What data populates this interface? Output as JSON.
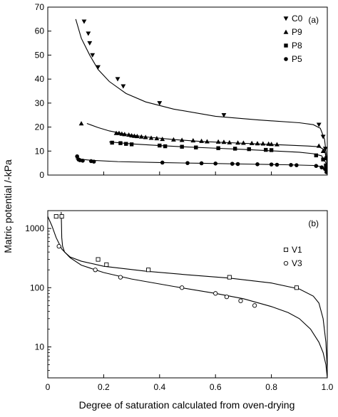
{
  "figure": {
    "ylabel": "Matric potential /-kPa",
    "xlabel": "Degree of saturation calculated from oven-drying"
  },
  "chart_data": [
    {
      "panel_label": "(a)",
      "type": "scatter",
      "xlim": [
        0,
        1.0
      ],
      "ylim": [
        0,
        70
      ],
      "yscale": "linear",
      "yticks": [
        0,
        10,
        20,
        30,
        40,
        50,
        60,
        70
      ],
      "xticks": [],
      "legend_position": "top-right",
      "series": [
        {
          "name": "C0",
          "marker": "triangle-down",
          "x": [
            0.13,
            0.145,
            0.15,
            0.16,
            0.18,
            0.25,
            0.27,
            0.4,
            0.63,
            0.97,
            0.985,
            0.993,
            0.998
          ],
          "y": [
            64,
            59,
            55,
            50,
            45,
            40,
            37,
            30,
            25,
            21,
            16,
            11,
            7
          ],
          "curve": {
            "x": [
              0.1,
              0.12,
              0.15,
              0.18,
              0.22,
              0.28,
              0.35,
              0.45,
              0.6,
              0.75,
              0.9,
              0.95,
              0.975,
              0.99,
              0.997,
              1.0
            ],
            "y": [
              65,
              57,
              50,
              44,
              39,
              34,
              30.5,
              27.5,
              24.5,
              23,
              21.8,
              21,
              19.5,
              15,
              8,
              2
            ]
          }
        },
        {
          "name": "P9",
          "marker": "triangle-up",
          "x": [
            0.12,
            0.245,
            0.255,
            0.265,
            0.275,
            0.29,
            0.3,
            0.31,
            0.32,
            0.335,
            0.35,
            0.37,
            0.39,
            0.41,
            0.45,
            0.48,
            0.52,
            0.55,
            0.57,
            0.61,
            0.63,
            0.65,
            0.68,
            0.7,
            0.73,
            0.75,
            0.77,
            0.79,
            0.8,
            0.82,
            0.97,
            0.985,
            0.993
          ],
          "y": [
            21.5,
            17.5,
            17.5,
            17.2,
            17.0,
            16.8,
            16.5,
            16.3,
            16.2,
            16.0,
            15.8,
            15.5,
            15.3,
            15.0,
            14.8,
            14.6,
            14.4,
            14.2,
            14.0,
            13.9,
            13.8,
            13.6,
            13.5,
            13.4,
            13.3,
            13.2,
            13.1,
            13.0,
            12.9,
            12.8,
            12.2,
            10,
            7
          ],
          "curve": {
            "x": [
              0.14,
              0.18,
              0.22,
              0.28,
              0.35,
              0.45,
              0.55,
              0.65,
              0.75,
              0.85,
              0.93,
              0.97,
              0.99,
              0.997,
              1.0
            ],
            "y": [
              21.5,
              19.8,
              18.4,
              17.0,
              15.9,
              14.8,
              14.0,
              13.5,
              13.0,
              12.5,
              12.1,
              11.8,
              10.5,
              6.5,
              2
            ]
          }
        },
        {
          "name": "P8",
          "marker": "square",
          "x": [
            0.23,
            0.26,
            0.28,
            0.3,
            0.4,
            0.42,
            0.48,
            0.53,
            0.61,
            0.67,
            0.72,
            0.78,
            0.8,
            0.96,
            0.985,
            0.995
          ],
          "y": [
            13.5,
            13.3,
            13.0,
            12.8,
            12.3,
            12.0,
            11.8,
            11.5,
            11.2,
            11.0,
            10.8,
            10.5,
            10.4,
            8.2,
            6.5,
            4.0
          ],
          "curve": {
            "x": [
              0.22,
              0.3,
              0.4,
              0.5,
              0.6,
              0.7,
              0.8,
              0.9,
              0.95,
              0.98,
              0.995,
              1.0
            ],
            "y": [
              13.8,
              13.0,
              12.3,
              11.7,
              11.2,
              10.7,
              10.1,
              9.5,
              8.9,
              8.0,
              5.0,
              1.5
            ]
          }
        },
        {
          "name": "P5",
          "marker": "circle",
          "x": [
            0.105,
            0.11,
            0.115,
            0.125,
            0.155,
            0.165,
            0.41,
            0.5,
            0.55,
            0.6,
            0.66,
            0.68,
            0.75,
            0.8,
            0.82,
            0.87,
            0.89,
            0.96,
            0.98,
            0.992,
            0.997
          ],
          "y": [
            7.8,
            6.5,
            6.2,
            6.0,
            5.8,
            5.6,
            5.2,
            5.0,
            4.9,
            4.8,
            4.7,
            4.6,
            4.5,
            4.4,
            4.3,
            4.2,
            4.1,
            3.8,
            3.2,
            2.5,
            1.2
          ],
          "curve": {
            "x": [
              0.1,
              0.15,
              0.25,
              0.4,
              0.55,
              0.7,
              0.85,
              0.95,
              0.98,
              0.995,
              1.0
            ],
            "y": [
              6.8,
              6.2,
              5.6,
              5.2,
              4.9,
              4.6,
              4.3,
              4.0,
              3.5,
              2.2,
              0.5
            ]
          }
        }
      ]
    },
    {
      "panel_label": "(b)",
      "type": "scatter",
      "xlim": [
        0,
        1.0
      ],
      "ylim": [
        3,
        2000
      ],
      "yscale": "log",
      "yticks": [
        10,
        100,
        1000
      ],
      "ytick_labels": [
        "10",
        "100",
        "1000"
      ],
      "xticks": [
        0,
        0.2,
        0.4,
        0.6,
        0.8,
        1.0
      ],
      "xtick_labels": [
        "0",
        "0.2",
        "0.4",
        "0.6",
        "0.8",
        "1.0"
      ],
      "legend_position": "top-right",
      "series": [
        {
          "name": "V1",
          "marker": "square-open",
          "x": [
            0.03,
            0.05,
            0.18,
            0.21,
            0.36,
            0.65,
            0.89
          ],
          "y": [
            1600,
            1600,
            300,
            245,
            200,
            150,
            100
          ],
          "curve": {
            "x": [
              0.048,
              0.049,
              0.05,
              0.053,
              0.06,
              0.08,
              0.12,
              0.2,
              0.35,
              0.5,
              0.65,
              0.8,
              0.9,
              0.95,
              0.97,
              0.985,
              0.995,
              1.0
            ],
            "y": [
              1900,
              1200,
              700,
              500,
              400,
              330,
              280,
              230,
              190,
              165,
              145,
              120,
              95,
              72,
              55,
              30,
              12,
              4
            ]
          }
        },
        {
          "name": "V3",
          "marker": "circle-open",
          "x": [
            0.04,
            0.17,
            0.26,
            0.48,
            0.6,
            0.64,
            0.69,
            0.74
          ],
          "y": [
            500,
            200,
            150,
            100,
            80,
            70,
            60,
            50
          ],
          "curve": {
            "x": [
              0.0,
              0.015,
              0.03,
              0.05,
              0.08,
              0.12,
              0.2,
              0.3,
              0.45,
              0.6,
              0.7,
              0.8,
              0.86,
              0.9,
              0.94,
              0.97,
              0.985,
              0.995,
              1.0
            ],
            "y": [
              1600,
              1100,
              700,
              450,
              320,
              240,
              180,
              140,
              105,
              80,
              65,
              48,
              38,
              30,
              20,
              12,
              8,
              5,
              3
            ]
          }
        }
      ]
    }
  ]
}
